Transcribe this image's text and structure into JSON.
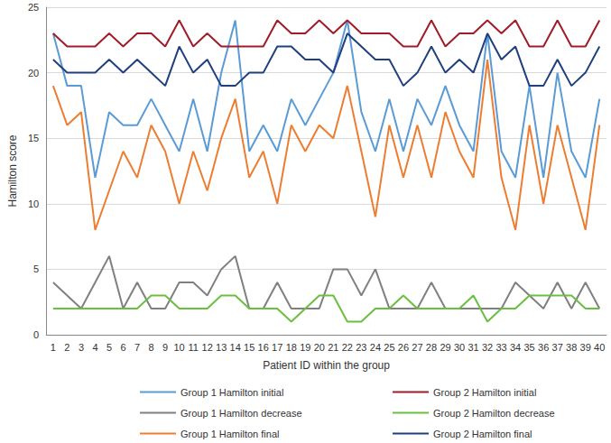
{
  "chart_data": {
    "type": "line",
    "x_label": "Patient ID within the group",
    "y_label": "Hamilton score",
    "categories": [
      "1",
      "2",
      "3",
      "4",
      "5",
      "6",
      "7",
      "8",
      "9",
      "10",
      "11",
      "12",
      "13",
      "14",
      "15",
      "16",
      "17",
      "18",
      "19",
      "20",
      "21",
      "22",
      "23",
      "24",
      "25",
      "26",
      "27",
      "28",
      "29",
      "30",
      "31",
      "32",
      "33",
      "34",
      "35",
      "36",
      "37",
      "38",
      "39",
      "40"
    ],
    "ylim": [
      0,
      25
    ],
    "yticks": [
      0,
      5,
      10,
      15,
      20,
      25
    ],
    "grid": true,
    "legend": "bottom",
    "series": [
      {
        "name": "Group 1 Hamilton initial",
        "color": "#5b9bd5",
        "values": [
          23,
          19,
          19,
          12,
          17,
          16,
          16,
          18,
          16,
          14,
          18,
          14,
          20,
          24,
          14,
          16,
          14,
          18,
          16,
          18,
          20,
          24,
          17,
          14,
          18,
          14,
          18,
          16,
          19,
          16,
          14,
          23,
          14,
          12,
          19,
          12,
          20,
          14,
          12,
          18
        ]
      },
      {
        "name": "Group 2 Hamilton initial",
        "color": "#a01c28",
        "values": [
          23,
          22,
          22,
          22,
          23,
          22,
          23,
          23,
          22,
          24,
          22,
          23,
          22,
          22,
          22,
          22,
          24,
          23,
          23,
          24,
          23,
          24,
          23,
          23,
          23,
          22,
          22,
          24,
          22,
          23,
          23,
          24,
          23,
          24,
          22,
          22,
          24,
          22,
          22,
          24
        ]
      },
      {
        "name": "Group 1 Hamilton decrease",
        "color": "#808080",
        "values": [
          4,
          3,
          2,
          4,
          6,
          2,
          4,
          2,
          2,
          4,
          4,
          3,
          5,
          6,
          2,
          2,
          4,
          2,
          2,
          2,
          5,
          5,
          3,
          5,
          2,
          2,
          2,
          4,
          2,
          2,
          2,
          2,
          2,
          4,
          3,
          2,
          4,
          2,
          4,
          2
        ]
      },
      {
        "name": "Group 2 Hamilton decrease",
        "color": "#6abf40",
        "values": [
          2,
          2,
          2,
          2,
          2,
          2,
          2,
          3,
          3,
          2,
          2,
          2,
          3,
          3,
          2,
          2,
          2,
          1,
          2,
          3,
          3,
          1,
          1,
          2,
          2,
          3,
          2,
          2,
          2,
          2,
          3,
          1,
          2,
          2,
          3,
          3,
          3,
          3,
          2,
          2
        ]
      },
      {
        "name": "Group 1 Hamilton final",
        "color": "#ed7d31",
        "values": [
          19,
          16,
          17,
          8,
          11,
          14,
          12,
          16,
          14,
          10,
          14,
          11,
          15,
          18,
          12,
          14,
          10,
          16,
          14,
          16,
          15,
          19,
          14,
          9,
          16,
          12,
          16,
          12,
          17,
          14,
          12,
          21,
          12,
          8,
          16,
          10,
          16,
          12,
          8,
          16
        ]
      },
      {
        "name": "Group 2 Hamilton final",
        "color": "#1f3f7f",
        "values": [
          21,
          20,
          20,
          20,
          21,
          20,
          21,
          20,
          19,
          22,
          20,
          21,
          19,
          19,
          20,
          20,
          22,
          22,
          21,
          21,
          20,
          23,
          22,
          21,
          21,
          19,
          20,
          22,
          20,
          21,
          20,
          23,
          21,
          22,
          19,
          19,
          21,
          19,
          20,
          22
        ]
      }
    ]
  }
}
